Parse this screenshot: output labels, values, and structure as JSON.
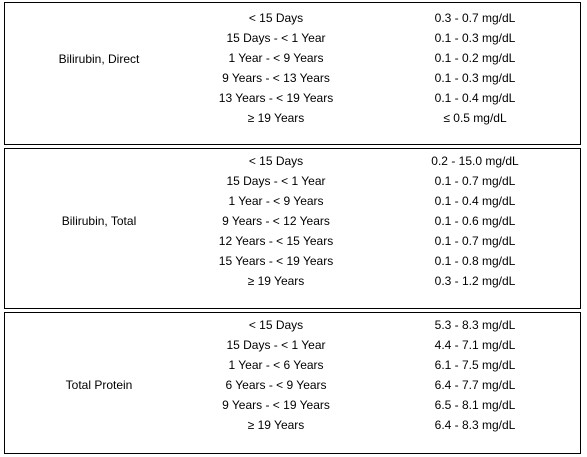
{
  "sections": [
    {
      "label": "Bilirubin, Direct",
      "rows": [
        {
          "age": "< 15 Days",
          "range": "0.3 - 0.7 mg/dL"
        },
        {
          "age": "15 Days - < 1 Year",
          "range": "0.1 - 0.3 mg/dL"
        },
        {
          "age": "1 Year - < 9 Years",
          "range": "0.1 - 0.2 mg/dL"
        },
        {
          "age": "9 Years - < 13 Years",
          "range": "0.1 - 0.3 mg/dL"
        },
        {
          "age": "13 Years - < 19 Years",
          "range": "0.1 - 0.4 mg/dL"
        },
        {
          "age": "≥ 19 Years",
          "range": "≤ 0.5 mg/dL"
        }
      ]
    },
    {
      "label": "Bilirubin, Total",
      "rows": [
        {
          "age": "< 15 Days",
          "range": "0.2 - 15.0 mg/dL"
        },
        {
          "age": "15 Days - < 1 Year",
          "range": "0.1 - 0.7 mg/dL"
        },
        {
          "age": "1 Year - < 9 Years",
          "range": "0.1 - 0.4 mg/dL"
        },
        {
          "age": "9 Years - < 12 Years",
          "range": "0.1 - 0.6 mg/dL"
        },
        {
          "age": "12 Years - < 15 Years",
          "range": "0.1 - 0.7 mg/dL"
        },
        {
          "age": "15 Years - < 19 Years",
          "range": "0.1 - 0.8 mg/dL"
        },
        {
          "age": "≥ 19 Years",
          "range": "0.3 - 1.2 mg/dL"
        }
      ]
    },
    {
      "label": "Total Protein",
      "rows": [
        {
          "age": "< 15 Days",
          "range": "5.3 - 8.3 mg/dL"
        },
        {
          "age": "15 Days - < 1 Year",
          "range": "4.4 - 7.1 mg/dL"
        },
        {
          "age": "1 Year - < 6 Years",
          "range": "6.1 - 7.5 mg/dL"
        },
        {
          "age": "6 Years - < 9 Years",
          "range": "6.4 - 7.7 mg/dL"
        },
        {
          "age": "9 Years - < 19 Years",
          "range": "6.5 - 8.1 mg/dL"
        },
        {
          "age": "≥ 19 Years",
          "range": "6.4 - 8.3 mg/dL"
        }
      ]
    }
  ]
}
